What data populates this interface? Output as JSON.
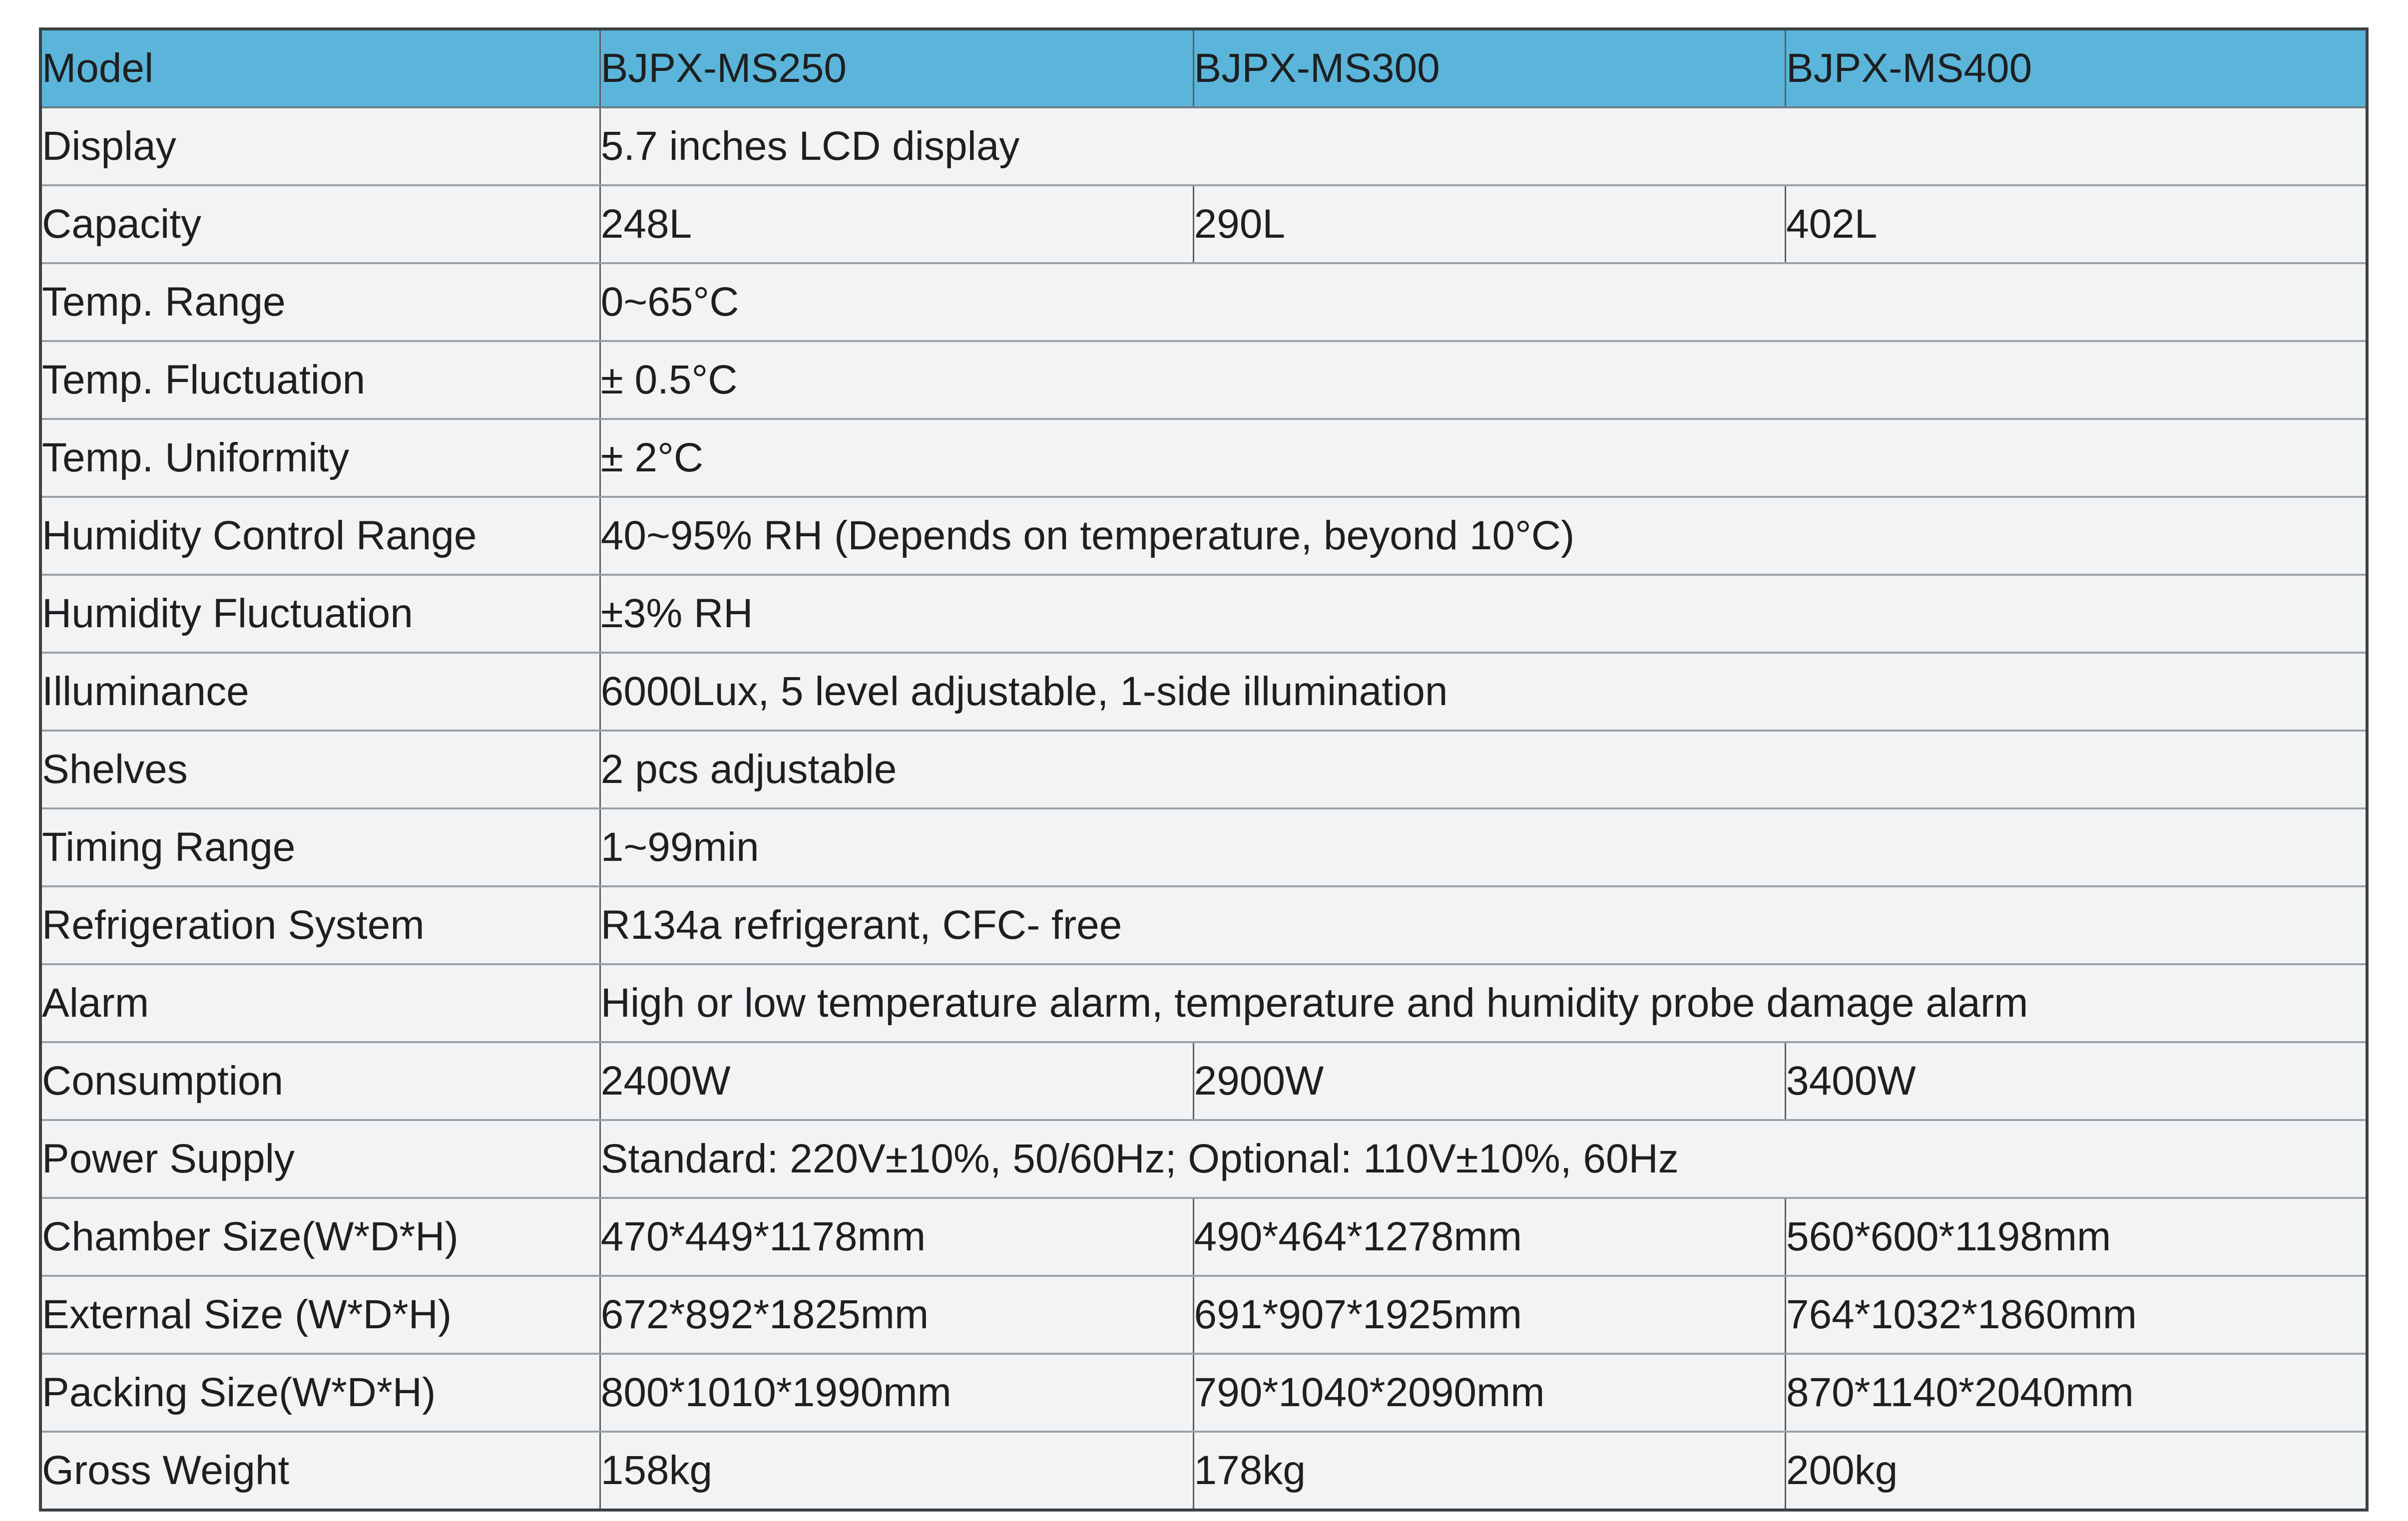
{
  "colors": {
    "header_bg": "#5bb5da",
    "row_bg": "#f2f3f5",
    "outer_border": "#3d4144",
    "horizontal_rule": "#9ca1a5",
    "vertical_rule": "#5b5e61",
    "text": "#1d1f21"
  },
  "table": {
    "header": {
      "cells": [
        "Model",
        "BJPX-MS250",
        "BJPX-MS300",
        "BJPX-MS400"
      ]
    },
    "rows": [
      {
        "label": "Display",
        "values": [
          "5.7 inches LCD display"
        ]
      },
      {
        "label": "Capacity",
        "values": [
          "248L",
          "290L",
          "402L"
        ]
      },
      {
        "label": "Temp. Range",
        "values": [
          "0~65°C"
        ]
      },
      {
        "label": "Temp. Fluctuation",
        "values": [
          "± 0.5°C"
        ]
      },
      {
        "label": "Temp. Uniformity",
        "values": [
          "± 2°C"
        ]
      },
      {
        "label": "Humidity Control Range",
        "values": [
          "40~95% RH (Depends on temperature, beyond 10°C)"
        ]
      },
      {
        "label": "Humidity Fluctuation",
        "values": [
          "±3% RH"
        ]
      },
      {
        "label": "Illuminance",
        "values": [
          "6000Lux, 5 level adjustable, 1-side illumination"
        ]
      },
      {
        "label": "Shelves",
        "values": [
          "2 pcs adjustable"
        ]
      },
      {
        "label": "Timing Range",
        "values": [
          "1~99min"
        ]
      },
      {
        "label": "Refrigeration System",
        "values": [
          "R134a refrigerant, CFC- free"
        ]
      },
      {
        "label": "Alarm",
        "values": [
          "High or low temperature alarm, temperature and humidity probe damage alarm"
        ]
      },
      {
        "label": "Consumption",
        "values": [
          "2400W",
          "2900W",
          "3400W"
        ]
      },
      {
        "label": "Power Supply",
        "values": [
          "Standard: 220V±10%, 50/60Hz; Optional: 110V±10%, 60Hz"
        ]
      },
      {
        "label": "Chamber Size(W*D*H)",
        "values": [
          "470*449*1178mm",
          "490*464*1278mm",
          "560*600*1198mm"
        ]
      },
      {
        "label": "External Size (W*D*H)",
        "values": [
          "672*892*1825mm",
          "691*907*1925mm",
          "764*1032*1860mm"
        ]
      },
      {
        "label": "Packing Size(W*D*H)",
        "values": [
          "800*1010*1990mm",
          "790*1040*2090mm",
          "870*1140*2040mm"
        ]
      },
      {
        "label": "Gross Weight",
        "values": [
          "158kg",
          "178kg",
          "200kg"
        ]
      }
    ]
  }
}
